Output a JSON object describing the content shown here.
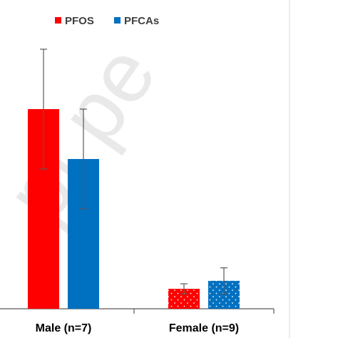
{
  "chart_data": {
    "type": "bar",
    "title": "",
    "xlabel": "",
    "ylabel": "",
    "categories": [
      "Male (n=7)",
      "Female (n=9)"
    ],
    "series": [
      {
        "name": "PFOS",
        "color": "#ff0000",
        "pattern": "none",
        "values": [
          100,
          10
        ],
        "error": [
          30,
          2.5
        ]
      },
      {
        "name": "PFCAs",
        "color": "#0070c0",
        "pattern": "dots",
        "values": [
          75,
          14
        ],
        "error": [
          25,
          6.5
        ]
      }
    ],
    "ylim": [
      0,
      150
    ],
    "grid": false,
    "legend_position": "top-center",
    "watermark_text": "pt pe"
  }
}
